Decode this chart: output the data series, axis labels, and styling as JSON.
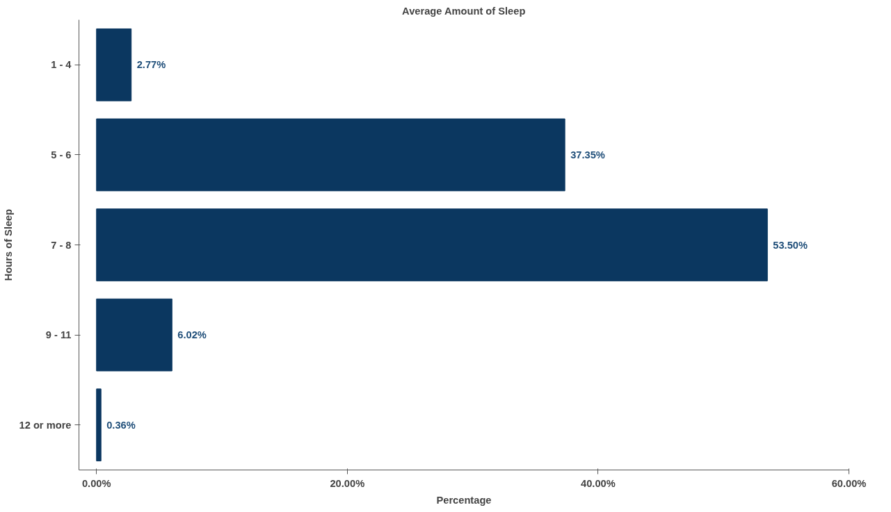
{
  "chart_data": {
    "type": "bar",
    "orientation": "horizontal",
    "title": "Average Amount of Sleep",
    "xlabel": "Percentage",
    "ylabel": "Hours of Sleep",
    "categories": [
      "1 - 4",
      "5 - 6",
      "7 - 8",
      "9 - 11",
      "12 or more"
    ],
    "values": [
      2.77,
      37.35,
      53.5,
      6.02,
      0.36
    ],
    "value_labels": [
      "2.77%",
      "37.35%",
      "53.50%",
      "6.02%",
      "0.36%"
    ],
    "color": "#0b3760",
    "xlim": [
      -1.4,
      60
    ],
    "xticks": [
      {
        "value": 0,
        "label": "0.00%"
      },
      {
        "value": 20,
        "label": "20.00%"
      },
      {
        "value": 40,
        "label": "40.00%"
      },
      {
        "value": 60,
        "label": "60.00%"
      }
    ],
    "grid": false
  }
}
